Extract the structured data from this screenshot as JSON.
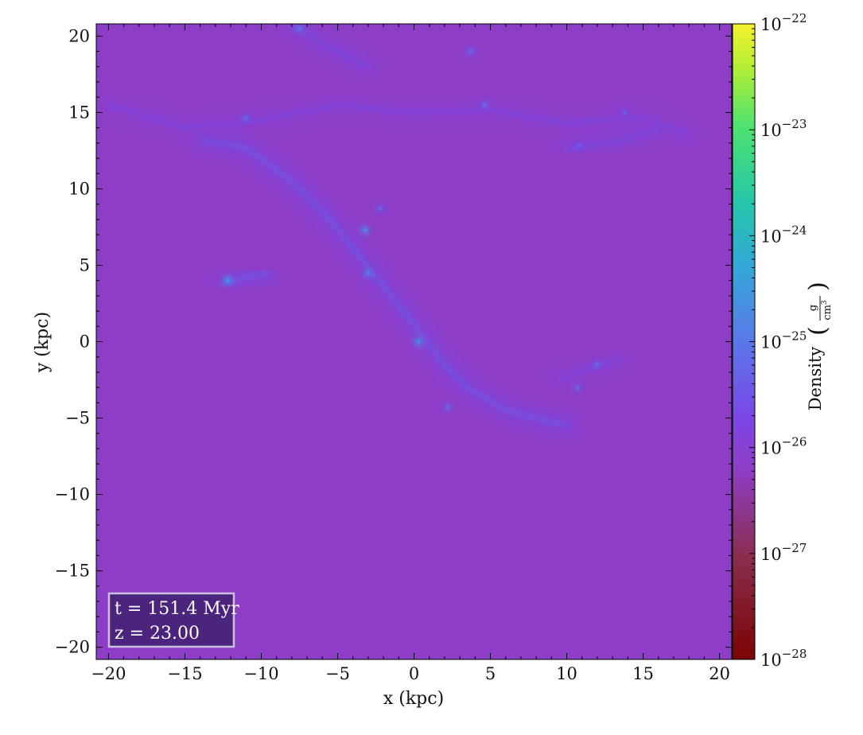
{
  "chart_data": {
    "type": "heatmap",
    "title": "",
    "xlabel": "x  (kpc)",
    "ylabel": "y  (kpc)",
    "xlim": [
      -20.8,
      20.8
    ],
    "ylim": [
      -20.8,
      20.8
    ],
    "x_ticks": [
      -20,
      -15,
      -10,
      -5,
      0,
      5,
      10,
      15,
      20
    ],
    "y_ticks": [
      -20,
      -15,
      -10,
      -5,
      0,
      5,
      10,
      15,
      20
    ],
    "x_tick_labels": [
      "−20",
      "−15",
      "−10",
      "−5",
      "0",
      "5",
      "10",
      "15",
      "20"
    ],
    "y_tick_labels": [
      "−20",
      "−15",
      "−10",
      "−5",
      "0",
      "5",
      "10",
      "15",
      "20"
    ],
    "grid": false,
    "colormap": "turbo-like (dark red → magenta/purple → blue → cyan → green → yellow)",
    "background_level_log10": -26.2,
    "filaments": [
      {
        "points": [
          [
            -14,
            13.2
          ],
          [
            -11,
            12.7
          ],
          [
            -8,
            10.5
          ],
          [
            -5.5,
            8
          ],
          [
            -3.5,
            5.5
          ],
          [
            -1.5,
            3
          ],
          [
            0.5,
            0.5
          ],
          [
            2,
            -1.5
          ],
          [
            3.5,
            -3
          ],
          [
            6,
            -4.5
          ],
          [
            10,
            -5.5
          ]
        ],
        "level_log10": -25.4
      },
      {
        "points": [
          [
            -20,
            15.5
          ],
          [
            -15,
            14
          ],
          [
            -10,
            14.5
          ],
          [
            -5,
            15.5
          ],
          [
            0,
            15
          ],
          [
            5,
            15.2
          ],
          [
            10,
            14.3
          ],
          [
            15,
            14.7
          ],
          [
            18,
            13.5
          ]
        ],
        "level_log10": -25.7
      },
      {
        "points": [
          [
            -8,
            20.8
          ],
          [
            -6,
            19.5
          ],
          [
            -4,
            18.5
          ],
          [
            -3,
            18
          ]
        ],
        "level_log10": -25.6
      },
      {
        "points": [
          [
            -12.5,
            3.8
          ],
          [
            -11,
            4.2
          ],
          [
            -9.5,
            4.5
          ]
        ],
        "level_log10": -25.4
      },
      {
        "points": [
          [
            10,
            12.7
          ],
          [
            12,
            12.9
          ],
          [
            14,
            13.3
          ],
          [
            16,
            13.9
          ]
        ],
        "level_log10": -25.6
      },
      {
        "points": [
          [
            9.5,
            -2.5
          ],
          [
            11.5,
            -1.7
          ],
          [
            13.5,
            -1.2
          ]
        ],
        "level_log10": -25.7
      }
    ],
    "bright_clumps": [
      {
        "x": -12.2,
        "y": 4.0,
        "level_log10": -24.3
      },
      {
        "x": -3.2,
        "y": 7.3,
        "level_log10": -24.5
      },
      {
        "x": -3.0,
        "y": 4.5,
        "level_log10": -24.6
      },
      {
        "x": 0.3,
        "y": 0.0,
        "level_log10": -24.4
      },
      {
        "x": -7.5,
        "y": 20.5,
        "level_log10": -24.8
      },
      {
        "x": -11,
        "y": 14.6,
        "level_log10": -25.0
      },
      {
        "x": 4.6,
        "y": 15.5,
        "level_log10": -25.0
      },
      {
        "x": 3.7,
        "y": 19.0,
        "level_log10": -25.0
      },
      {
        "x": 10.7,
        "y": -3.0,
        "level_log10": -25.0
      },
      {
        "x": 12.0,
        "y": -1.5,
        "level_log10": -25.0
      },
      {
        "x": 13.8,
        "y": 15.0,
        "level_log10": -25.2
      },
      {
        "x": 10.8,
        "y": 12.8,
        "level_log10": -25.2
      },
      {
        "x": 2.2,
        "y": -4.3,
        "level_log10": -25.0
      },
      {
        "x": -2.2,
        "y": 8.7,
        "level_log10": -25.1
      }
    ],
    "colorbar": {
      "label": "Density",
      "unit_numerator": "g",
      "unit_denominator": "cm",
      "unit_denominator_exponent": "3",
      "scale": "log",
      "range_log10": [
        -28,
        -22
      ],
      "ticks": [
        {
          "mantissa": "10",
          "exponent": "-22"
        },
        {
          "mantissa": "10",
          "exponent": "-23"
        },
        {
          "mantissa": "10",
          "exponent": "-24"
        },
        {
          "mantissa": "10",
          "exponent": "-25"
        },
        {
          "mantissa": "10",
          "exponent": "-26"
        },
        {
          "mantissa": "10",
          "exponent": "-27"
        },
        {
          "mantissa": "10",
          "exponent": "-28"
        }
      ]
    },
    "annotation": {
      "line1": "t = 151.4 Myr",
      "line2": "z = 23.00",
      "placement": "bottom-left"
    }
  }
}
